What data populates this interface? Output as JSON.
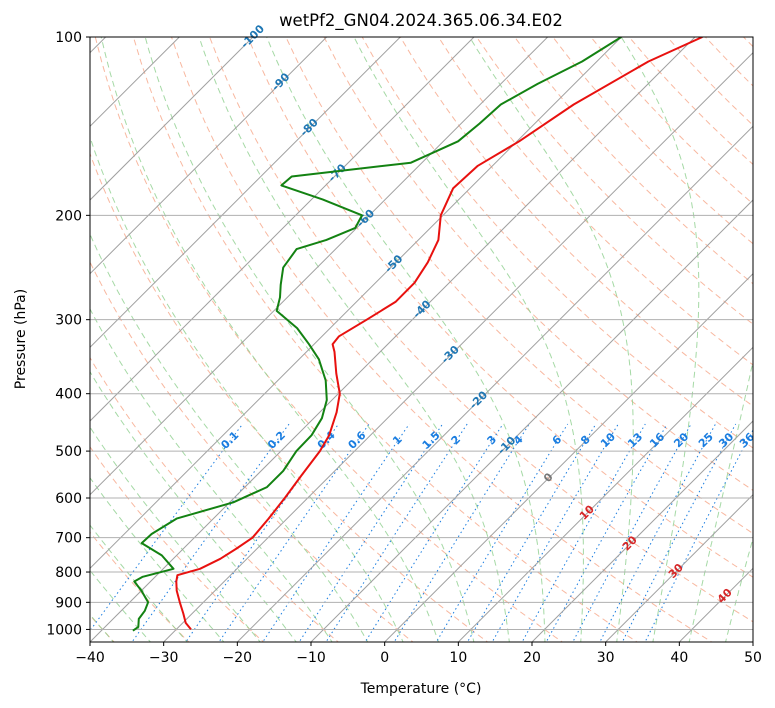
{
  "chart_data": {
    "type": "line",
    "title": "wetPf2_GN04.2024.365.06.34.E02",
    "xlabel": "Temperature (°C)",
    "ylabel": "Pressure (hPa)",
    "xlim": [
      -40,
      50
    ],
    "ylim": [
      1050,
      100
    ],
    "y_scale": "log",
    "x_ticks": [
      -40,
      -30,
      -20,
      -10,
      0,
      10,
      20,
      30,
      40,
      50
    ],
    "y_ticks": [
      100,
      200,
      300,
      400,
      500,
      600,
      700,
      800,
      900,
      1000
    ],
    "grid": true,
    "series": [
      {
        "role": "temperature",
        "color": "#e8110f",
        "points": [
          [
            -39.0,
            100
          ],
          [
            -43.0,
            110
          ],
          [
            -47.3,
            130
          ],
          [
            -49.7,
            150
          ],
          [
            -52.0,
            165
          ],
          [
            -52.3,
            180
          ],
          [
            -50.3,
            200
          ],
          [
            -47.3,
            220
          ],
          [
            -45.7,
            240
          ],
          [
            -44.7,
            260
          ],
          [
            -44.7,
            280
          ],
          [
            -46.2,
            300
          ],
          [
            -47.7,
            320
          ],
          [
            -47.5,
            330
          ],
          [
            -46.2,
            340
          ],
          [
            -43.0,
            370
          ],
          [
            -39.8,
            400
          ],
          [
            -37.7,
            430
          ],
          [
            -35.6,
            470
          ],
          [
            -34.7,
            500
          ],
          [
            -33.9,
            550
          ],
          [
            -33.1,
            600
          ],
          [
            -32.5,
            650
          ],
          [
            -32.1,
            700
          ],
          [
            -32.8,
            730
          ],
          [
            -33.6,
            760
          ],
          [
            -35.0,
            790
          ],
          [
            -37.2,
            810
          ],
          [
            -36.5,
            830
          ],
          [
            -35.2,
            860
          ],
          [
            -33.2,
            900
          ],
          [
            -31.2,
            940
          ],
          [
            -29.6,
            975
          ],
          [
            -28.0,
            1000
          ]
        ]
      },
      {
        "role": "dewpoint",
        "color": "#138212",
        "points": [
          [
            -50.0,
            100
          ],
          [
            -52.0,
            110
          ],
          [
            -55.0,
            120
          ],
          [
            -57.2,
            130
          ],
          [
            -57.5,
            140
          ],
          [
            -58.0,
            150
          ],
          [
            -61.5,
            163
          ],
          [
            -75.8,
            172
          ],
          [
            -76.0,
            178
          ],
          [
            -68.5,
            188
          ],
          [
            -61.0,
            200
          ],
          [
            -60.2,
            210
          ],
          [
            -62.5,
            220
          ],
          [
            -65.3,
            228
          ],
          [
            -64.6,
            245
          ],
          [
            -62.6,
            262
          ],
          [
            -61.0,
            275
          ],
          [
            -59.6,
            290
          ],
          [
            -54.5,
            310
          ],
          [
            -50.7,
            330
          ],
          [
            -47.3,
            350
          ],
          [
            -43.5,
            380
          ],
          [
            -40.7,
            410
          ],
          [
            -38.9,
            440
          ],
          [
            -38.0,
            470
          ],
          [
            -37.9,
            500
          ],
          [
            -37.0,
            540
          ],
          [
            -37.0,
            575
          ],
          [
            -39.5,
            610
          ],
          [
            -45.0,
            650
          ],
          [
            -46.3,
            690
          ],
          [
            -46.4,
            715
          ],
          [
            -42.0,
            750
          ],
          [
            -38.6,
            790
          ],
          [
            -41.7,
            815
          ],
          [
            -42.2,
            830
          ],
          [
            -40.0,
            860
          ],
          [
            -37.5,
            900
          ],
          [
            -36.8,
            930
          ],
          [
            -36.5,
            960
          ],
          [
            -35.5,
            990
          ],
          [
            -35.7,
            1005
          ]
        ]
      }
    ],
    "mixing_ratio_labels": [
      "0.1",
      "0.2",
      "0.4",
      "0.6",
      "1",
      "1.5",
      "2",
      "3",
      "4",
      "6",
      "8",
      "10",
      "13",
      "16",
      "20",
      "25",
      "30",
      "36"
    ],
    "dry_adiabat_labels": [
      "-100",
      "-90",
      "-80",
      "-70",
      "-60",
      "-50",
      "-40",
      "-30",
      "-20",
      "-10"
    ],
    "moist_adiabat_labels": [
      "0",
      "10",
      "20",
      "30",
      "40"
    ],
    "colors": {
      "mixing_ratio": "#1a7de0",
      "dry_adiabat_label": "#1f77b4",
      "moist_adiabat_label": "#d62728",
      "zero_label": "#777777",
      "isotherm": "#a0a0a0",
      "dry_adiabat_line": "#f5a080",
      "moist_adiabat_line": "#8fcf8f"
    }
  }
}
